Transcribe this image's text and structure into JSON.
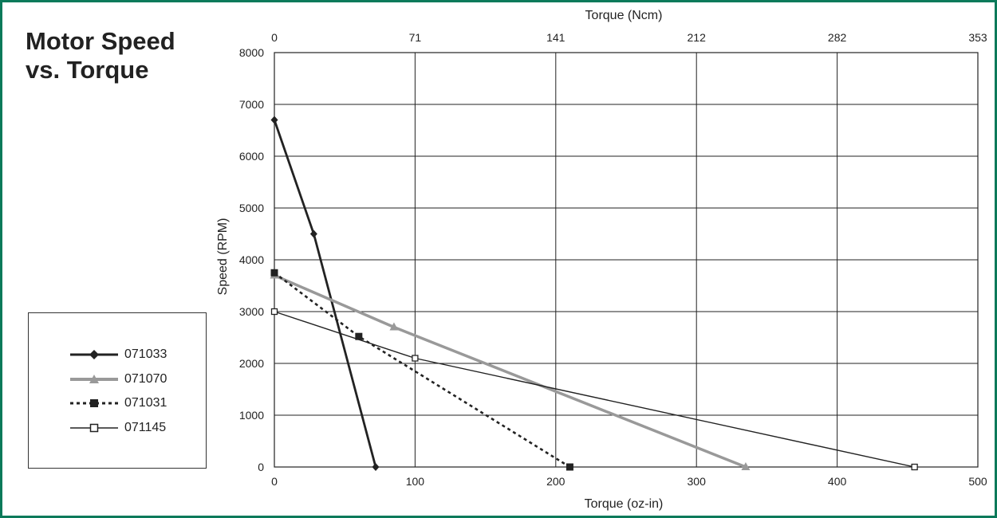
{
  "chart_data": {
    "type": "line",
    "title": "Motor Speed vs. Torque",
    "title_lines": [
      "Motor Speed",
      "vs. Torque"
    ],
    "xlabel": "Torque (oz-in)",
    "x2label": "Torque (Ncm)",
    "ylabel": "Speed (RPM)",
    "xlim": [
      0,
      500
    ],
    "ylim": [
      0,
      8000
    ],
    "x_ticks": [
      "0",
      "100",
      "200",
      "300",
      "400",
      "500"
    ],
    "x2_ticks": [
      "0",
      "71",
      "141",
      "212",
      "282",
      "353"
    ],
    "y_ticks": [
      "0",
      "1000",
      "2000",
      "3000",
      "4000",
      "5000",
      "6000",
      "7000",
      "8000"
    ],
    "grid": true,
    "legend_position": "left",
    "series": [
      {
        "name": "071033",
        "color": "#222222",
        "style": "solid-thick",
        "marker": "diamond",
        "points": [
          [
            0,
            6700
          ],
          [
            28,
            4500
          ],
          [
            72,
            0
          ]
        ]
      },
      {
        "name": "071070",
        "color": "#999999",
        "style": "solid-thick",
        "marker": "triangle",
        "points": [
          [
            0,
            3700
          ],
          [
            85,
            2700
          ],
          [
            335,
            0
          ]
        ]
      },
      {
        "name": "071031",
        "color": "#222222",
        "style": "dotted",
        "marker": "filled-square",
        "points": [
          [
            0,
            3750
          ],
          [
            60,
            2520
          ],
          [
            210,
            0
          ]
        ]
      },
      {
        "name": "071145",
        "color": "#222222",
        "style": "solid-thin",
        "marker": "open-square",
        "points": [
          [
            0,
            3000
          ],
          [
            100,
            2100
          ],
          [
            455,
            0
          ]
        ]
      }
    ]
  }
}
